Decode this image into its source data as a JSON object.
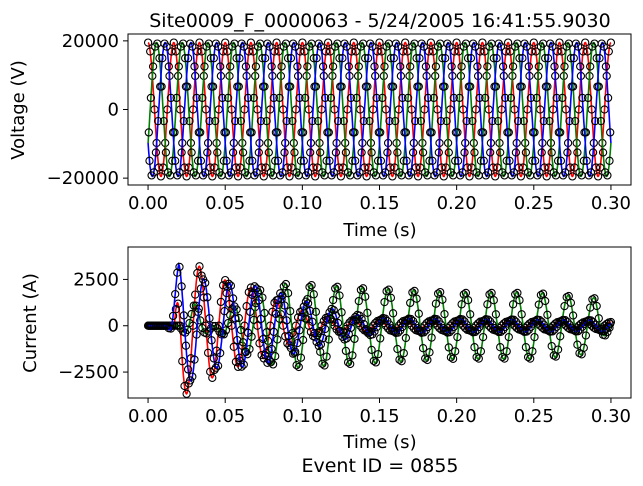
{
  "figure": {
    "title": "Site0009_F_0000063 - 5/24/2005 16:41:55.9030",
    "footer": "Event ID = 0855"
  },
  "chart_data": [
    {
      "type": "line",
      "name": "voltage",
      "xlabel": "Time (s)",
      "ylabel": "Voltage (V)",
      "xlim": [
        -0.013,
        0.313
      ],
      "ylim": [
        -22000,
        22000
      ],
      "xticks": [
        0.0,
        0.05,
        0.1,
        0.15,
        0.2,
        0.25,
        0.3
      ],
      "xtick_labels": [
        "0.00",
        "0.05",
        "0.10",
        "0.15",
        "0.20",
        "0.25",
        "0.30"
      ],
      "yticks": [
        -20000,
        0,
        20000
      ],
      "ytick_labels": [
        "−20000",
        "0",
        "20000"
      ],
      "grid": false,
      "frequency_hz": 60,
      "t_range": [
        0.0,
        0.3
      ],
      "series": [
        {
          "color": "#ff0000",
          "amplitude": 19500,
          "phase_deg": 90
        },
        {
          "color": "#008000",
          "amplitude": 19500,
          "phase_deg": -30
        },
        {
          "color": "#0000ff",
          "amplitude": 19500,
          "phase_deg": 210
        }
      ],
      "markers": {
        "style": "open-circle",
        "color": "#000000"
      }
    },
    {
      "type": "line",
      "name": "current",
      "xlabel": "Time (s)",
      "ylabel": "Current (A)",
      "xlim": [
        -0.013,
        0.313
      ],
      "ylim": [
        -3900,
        4250
      ],
      "xticks": [
        0.0,
        0.05,
        0.1,
        0.15,
        0.2,
        0.25,
        0.3
      ],
      "xtick_labels": [
        "0.00",
        "0.05",
        "0.10",
        "0.15",
        "0.20",
        "0.25",
        "0.30"
      ],
      "yticks": [
        -2500,
        0,
        2500
      ],
      "ytick_labels": [
        "−2500",
        "0",
        "2500"
      ],
      "grid": false,
      "frequency_hz": 60,
      "series": [
        {
          "color": "#ff0000",
          "peaks": [
            [
              0.017,
              0
            ],
            [
              0.021,
              3900
            ],
            [
              0.037,
              3000
            ],
            [
              0.054,
              2300
            ],
            [
              0.07,
              2000
            ],
            [
              0.087,
              1200
            ],
            [
              0.104,
              700
            ],
            [
              0.12,
              400
            ],
            [
              0.137,
              300
            ],
            [
              0.3,
              200
            ]
          ],
          "phase_deg": 90
        },
        {
          "color": "#008000",
          "peaks": [
            [
              0.02,
              0
            ],
            [
              0.03,
              -1200
            ],
            [
              0.05,
              700
            ],
            [
              0.07,
              1900
            ],
            [
              0.09,
              2300
            ],
            [
              0.11,
              2200
            ],
            [
              0.15,
              2000
            ],
            [
              0.2,
              1800
            ],
            [
              0.25,
              1800
            ],
            [
              0.29,
              1500
            ],
            [
              0.3,
              0
            ]
          ],
          "phase_deg": -30
        },
        {
          "color": "#0000ff",
          "peaks": [
            [
              0.013,
              0
            ],
            [
              0.02,
              -3400
            ],
            [
              0.04,
              -2300
            ],
            [
              0.055,
              -2300
            ],
            [
              0.075,
              -2100
            ],
            [
              0.095,
              -1500
            ],
            [
              0.115,
              -1000
            ],
            [
              0.135,
              -600
            ],
            [
              0.155,
              -400
            ],
            [
              0.3,
              -300
            ]
          ],
          "phase_deg": 210
        }
      ],
      "markers": {
        "style": "open-circle",
        "color": "#000000"
      }
    }
  ]
}
